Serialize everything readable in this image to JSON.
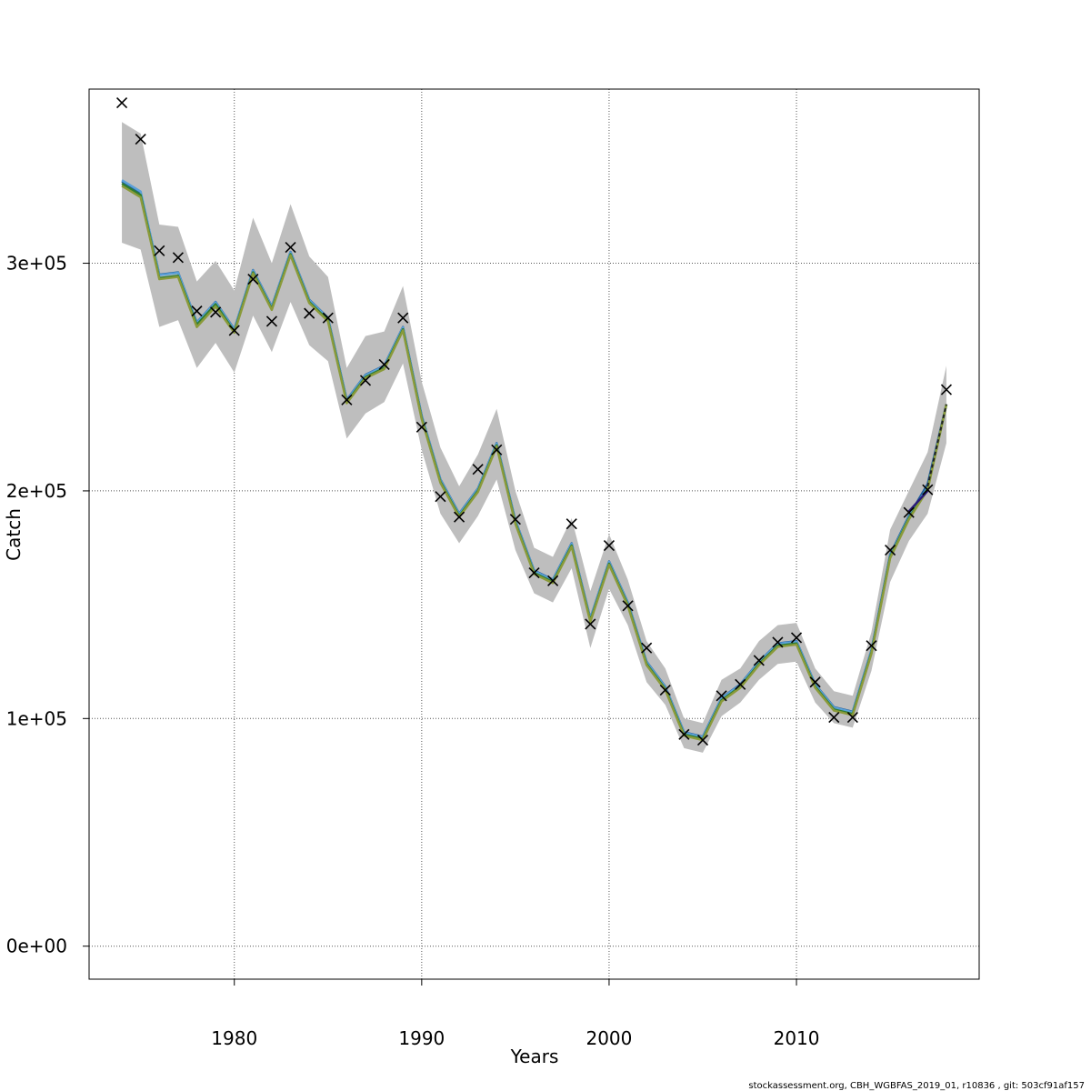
{
  "chart_data": {
    "type": "line",
    "xlabel": "Years",
    "ylabel": "Catch",
    "xlim": [
      1972.25,
      2019.75
    ],
    "ylim": [
      -14500,
      376500
    ],
    "x_ticks": [
      1980,
      1990,
      2000,
      2010
    ],
    "x_tick_labels": [
      "1980",
      "1990",
      "2000",
      "2010"
    ],
    "y_ticks": [
      0,
      100000,
      200000,
      300000
    ],
    "y_tick_labels": [
      "0e+00",
      "1e+05",
      "2e+05",
      "3e+05"
    ],
    "grid": true,
    "x": [
      1974,
      1975,
      1976,
      1977,
      1978,
      1979,
      1980,
      1981,
      1982,
      1983,
      1984,
      1985,
      1986,
      1987,
      1988,
      1989,
      1990,
      1991,
      1992,
      1993,
      1994,
      1995,
      1996,
      1997,
      1998,
      1999,
      2000,
      2001,
      2002,
      2003,
      2004,
      2005,
      2006,
      2007,
      2008,
      2009,
      2010,
      2011,
      2012,
      2013,
      2014,
      2015,
      2016,
      2017,
      2018
    ],
    "series": [
      {
        "kind": "band",
        "color": "#bebebe",
        "upper": [
          362000,
          357000,
          317000,
          316000,
          292000,
          301000,
          288000,
          320000,
          300000,
          326000,
          303000,
          294000,
          254000,
          268000,
          270000,
          290000,
          248000,
          219000,
          202000,
          216000,
          236000,
          200000,
          175000,
          171000,
          188000,
          156000,
          181000,
          161000,
          134000,
          122000,
          100000,
          98000,
          117000,
          122000,
          134000,
          141000,
          142000,
          122000,
          112000,
          110000,
          138000,
          183000,
          200000,
          217000,
          255000
        ],
        "lower": [
          309000,
          306000,
          272000,
          275000,
          254000,
          265000,
          252000,
          277000,
          261000,
          283000,
          264000,
          257000,
          223000,
          234000,
          239000,
          256000,
          218000,
          190000,
          177000,
          189000,
          205000,
          174000,
          155000,
          151000,
          166000,
          131000,
          157000,
          141000,
          116000,
          106000,
          87000,
          85000,
          101000,
          107000,
          117000,
          124000,
          125000,
          107000,
          98000,
          96000,
          121000,
          160000,
          178000,
          190000,
          221000
        ]
      },
      {
        "kind": "line",
        "color": "#1f5c99",
        "values": [
          336000,
          331000,
          295000,
          296000,
          274000,
          283000,
          271000,
          297000,
          281000,
          305000,
          284000,
          276000,
          240000,
          251000,
          255000,
          272000,
          233000,
          205000,
          190000,
          201000,
          221000,
          187000,
          165000,
          161000,
          177000,
          144000,
          169000,
          151000,
          125000,
          114000,
          94000,
          92000,
          109000,
          115000,
          125000,
          133000,
          134000,
          115000,
          105000,
          103000,
          130000,
          172000,
          189000,
          203000,
          238000
        ]
      },
      {
        "kind": "line",
        "color": "#5aa0d8",
        "values": [
          336500,
          331500,
          294800,
          295800,
          273800,
          282800,
          270800,
          296800,
          280800,
          304800,
          283800,
          275800,
          239800,
          250800,
          254800,
          271800,
          232800,
          204800,
          189800,
          200800,
          220800,
          186800,
          164800,
          160800,
          176800,
          143800,
          168800,
          150800,
          124800,
          113800,
          93800,
          91800,
          108800,
          114800,
          124800,
          132800,
          133800,
          114800,
          104800,
          102800,
          129800,
          171500,
          188500,
          201500,
          238000
        ]
      },
      {
        "kind": "line",
        "color": "#2e7d32",
        "values": [
          335000,
          330000,
          293500,
          294500,
          273000,
          282000,
          270000,
          296000,
          280000,
          304000,
          283000,
          275000,
          239000,
          250000,
          254000,
          271000,
          232000,
          204000,
          189000,
          200000,
          220000,
          186000,
          164000,
          160000,
          176000,
          143000,
          168000,
          150000,
          124000,
          113000,
          93000,
          91000,
          108000,
          114000,
          124000,
          132000,
          133000,
          114000,
          104000,
          102000,
          129000,
          171000,
          188000,
          201000,
          238000
        ]
      },
      {
        "kind": "line",
        "color": "#8a9a3a",
        "values": [
          334000,
          329000,
          293000,
          294000,
          272000,
          281000,
          269500,
          295500,
          279500,
          303500,
          282500,
          274500,
          238500,
          249500,
          253500,
          270500,
          231500,
          203500,
          188500,
          199500,
          219500,
          185500,
          163500,
          159500,
          175500,
          142500,
          167500,
          149500,
          123500,
          112500,
          92500,
          90500,
          107500,
          113500,
          123500,
          131500,
          132500,
          113500,
          103500,
          101500,
          128500,
          170500,
          187500,
          200500,
          238000
        ]
      },
      {
        "kind": "line",
        "color": "#2a1a7a",
        "values": [
          null,
          null,
          null,
          null,
          null,
          null,
          null,
          null,
          null,
          null,
          null,
          null,
          null,
          null,
          null,
          null,
          null,
          null,
          null,
          null,
          null,
          null,
          null,
          null,
          null,
          null,
          null,
          null,
          null,
          null,
          null,
          null,
          null,
          null,
          null,
          null,
          null,
          null,
          null,
          null,
          null,
          null,
          191000,
          200000,
          null
        ]
      },
      {
        "kind": "line",
        "color": "#222222",
        "dashed": true,
        "values": [
          null,
          null,
          null,
          null,
          null,
          null,
          null,
          null,
          null,
          null,
          null,
          null,
          null,
          null,
          null,
          null,
          null,
          null,
          null,
          null,
          null,
          null,
          null,
          null,
          null,
          null,
          null,
          null,
          null,
          null,
          null,
          null,
          null,
          null,
          null,
          null,
          null,
          null,
          null,
          null,
          null,
          null,
          null,
          202000,
          238000
        ]
      },
      {
        "kind": "points",
        "marker": "x",
        "color": "#000000",
        "values": [
          370500,
          354500,
          305500,
          302500,
          279000,
          278500,
          270500,
          293000,
          274500,
          307000,
          278000,
          276000,
          240000,
          248500,
          255500,
          276000,
          228000,
          197500,
          188500,
          209500,
          218000,
          187500,
          164000,
          160500,
          185500,
          141500,
          176000,
          149500,
          131000,
          112500,
          93000,
          90500,
          110000,
          115000,
          125500,
          133500,
          135500,
          116000,
          100500,
          100500,
          132000,
          174000,
          190500,
          200500,
          244500
        ]
      }
    ]
  },
  "footer": {
    "credit": "stockassessment.org, CBH_WGBFAS_2019_01, r10836 , git: 503cf91af157"
  }
}
